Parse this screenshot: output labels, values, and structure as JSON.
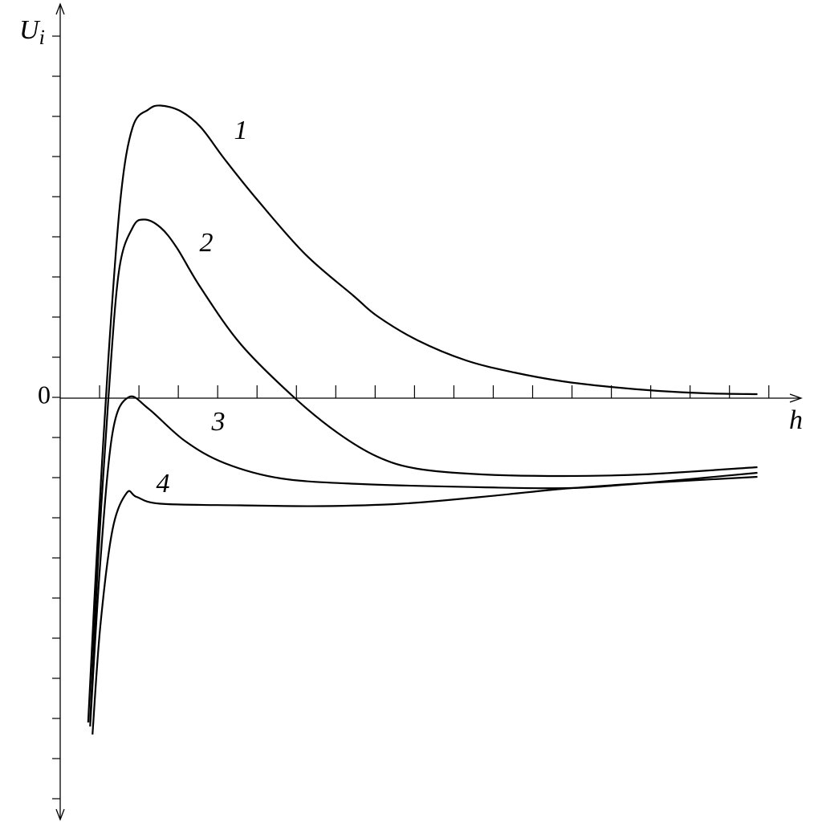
{
  "chart_data": {
    "type": "line",
    "xlabel": "h",
    "ylabel": {
      "main": "U",
      "sub": "i"
    },
    "xlim": [
      0,
      18.8
    ],
    "ylim": [
      -10.5,
      9.6
    ],
    "yticks": [
      0
    ],
    "xminorticks": [
      1,
      2,
      3,
      4,
      5,
      6,
      7,
      8,
      9,
      10,
      11,
      12,
      13,
      14,
      15,
      16,
      17,
      18
    ],
    "yminorticks": [
      -10,
      -9,
      -8,
      -7,
      -6,
      -5,
      -4,
      -3,
      -2,
      -1,
      1,
      2,
      3,
      4,
      5,
      6,
      7,
      8,
      9
    ],
    "color": "#000000",
    "series": [
      {
        "name": "1",
        "x": [
          0.71,
          0.92,
          1.22,
          1.53,
          1.84,
          2.24,
          2.55,
          3.06,
          3.57,
          4.18,
          5.0,
          6.22,
          7.45,
          8.06,
          9.08,
          10.31,
          11.53,
          12.76,
          13.98,
          15.2,
          16.43,
          17.71
        ],
        "values": [
          -8.1,
          -4.1,
          0.92,
          4.93,
          6.73,
          7.17,
          7.27,
          7.13,
          6.73,
          5.93,
          4.93,
          3.57,
          2.53,
          2.02,
          1.42,
          0.92,
          0.62,
          0.4,
          0.26,
          0.16,
          0.1,
          0.08
        ]
      },
      {
        "name": "2",
        "x": [
          0.76,
          0.96,
          1.22,
          1.49,
          1.84,
          2.14,
          2.55,
          2.96,
          3.57,
          4.59,
          5.94,
          7.04,
          8.06,
          9.08,
          10.71,
          12.76,
          14.8,
          17.71
        ],
        "values": [
          -8.1,
          -4.09,
          -0.08,
          3.13,
          4.23,
          4.43,
          4.23,
          3.73,
          2.73,
          1.32,
          0,
          -0.88,
          -1.48,
          -1.78,
          -1.92,
          -1.96,
          -1.92,
          -1.74
        ]
      },
      {
        "name": "3",
        "x": [
          0.76,
          1.02,
          1.33,
          1.73,
          2.24,
          3.16,
          4.18,
          5.61,
          7.65,
          10.71,
          12.96,
          14.8,
          17.71
        ],
        "values": [
          -8.2,
          -4.09,
          -0.88,
          0,
          -0.28,
          -1.08,
          -1.64,
          -2.02,
          -2.16,
          -2.24,
          -2.26,
          -2.14,
          -1.88
        ]
      },
      {
        "name": "4",
        "x": [
          0.82,
          1.02,
          1.33,
          1.69,
          1.94,
          2.55,
          4.59,
          6.63,
          8.67,
          10.71,
          12.76,
          14.8,
          17.71
        ],
        "values": [
          -8.4,
          -5.69,
          -3.29,
          -2.38,
          -2.48,
          -2.65,
          -2.69,
          -2.71,
          -2.65,
          -2.48,
          -2.28,
          -2.14,
          -1.98
        ]
      }
    ]
  }
}
